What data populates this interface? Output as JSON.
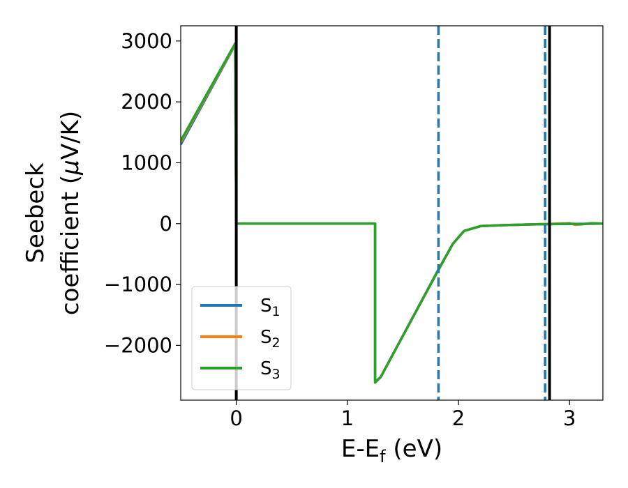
{
  "chart_data": {
    "type": "line",
    "title": "",
    "xlabel": "E-E",
    "xlabel_sub": "f",
    "xlabel_unit": " (eV)",
    "ylabel_line1": "Seebeck",
    "ylabel_line2_pre": "coefficient  (",
    "ylabel_line2_mu": "μ",
    "ylabel_line2_post": "V/K)",
    "xlim": [
      -0.5,
      3.3
    ],
    "ylim": [
      -2900,
      3250
    ],
    "xticks": [
      0,
      1,
      2,
      3
    ],
    "xtick_labels": [
      "0",
      "1",
      "2",
      "3"
    ],
    "yticks": [
      -2000,
      -1000,
      0,
      1000,
      2000,
      3000
    ],
    "ytick_labels": [
      "−2000",
      "−1000",
      "0",
      "1000",
      "2000",
      "3000"
    ],
    "grid": false,
    "legend_position": "lower-left",
    "vertical_lines": [
      {
        "x": 0.0,
        "style": "solid",
        "color": "#000000"
      },
      {
        "x": 2.82,
        "style": "solid",
        "color": "#000000"
      },
      {
        "x": 1.82,
        "style": "dashed",
        "color": "#1f77b4"
      },
      {
        "x": 2.78,
        "style": "dashed",
        "color": "#1f77b4"
      }
    ],
    "series": [
      {
        "name": "S",
        "name_sub": "1",
        "color": "#1f77b4",
        "x": [
          -0.5,
          -0.01,
          0.0,
          1.25,
          1.25,
          1.3,
          1.82,
          1.95,
          2.05,
          2.2,
          2.4,
          2.6,
          2.8,
          3.0,
          3.2,
          3.3
        ],
        "y": [
          1300,
          2940,
          0,
          0,
          -2600,
          -2520,
          -750,
          -330,
          -120,
          -40,
          -25,
          -15,
          -8,
          -5,
          -3,
          0
        ]
      },
      {
        "name": "S",
        "name_sub": "2",
        "color": "#ff7f0e",
        "x": [
          -0.5,
          -0.01,
          0.0,
          1.25,
          1.25,
          1.3,
          1.82,
          1.95,
          2.05,
          2.2,
          2.4,
          2.6,
          2.8,
          3.0,
          3.05,
          3.1,
          3.2,
          3.3
        ],
        "y": [
          1340,
          2950,
          0,
          0,
          -2610,
          -2520,
          -760,
          -330,
          -120,
          -40,
          -25,
          -15,
          -5,
          5,
          -20,
          -10,
          5,
          0
        ]
      },
      {
        "name": "S",
        "name_sub": "3",
        "color": "#2ca02c",
        "x": [
          -0.5,
          -0.01,
          0.0,
          1.25,
          1.25,
          1.3,
          1.82,
          1.95,
          2.05,
          2.2,
          2.4,
          2.6,
          2.8,
          3.0,
          3.1,
          3.2,
          3.3
        ],
        "y": [
          1360,
          2960,
          0,
          0,
          -2610,
          -2520,
          -760,
          -330,
          -120,
          -40,
          -25,
          -15,
          -8,
          0,
          -12,
          5,
          0
        ]
      }
    ]
  }
}
